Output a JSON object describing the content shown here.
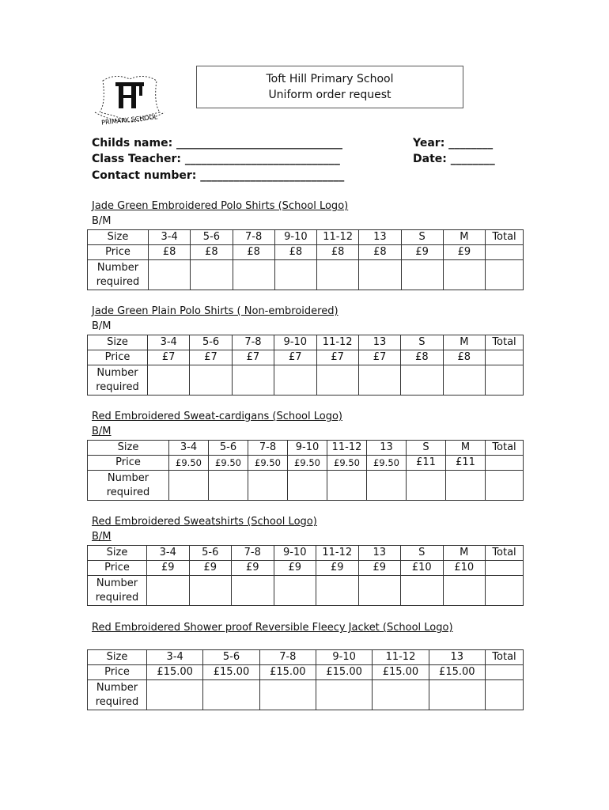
{
  "logo": {
    "text": "TH",
    "caption": "PRIMARY SCHOOL"
  },
  "header": {
    "line1": "Toft Hill Primary School",
    "line2": "Uniform order request"
  },
  "fields": {
    "childs_name": "Childs name: ______________________________",
    "year": "Year: ________",
    "class_teacher": "Class Teacher: ____________________________",
    "date": "Date: ________",
    "contact": "Contact number: __________________________"
  },
  "sections": [
    {
      "title": "Jade Green Embroidered Polo Shirts (School Logo)",
      "note": "B/M",
      "row_labels": [
        "Size",
        "Price",
        "Number required"
      ],
      "sizes": [
        "3-4",
        "5-6",
        "7-8",
        "9-10",
        "11-12",
        "13",
        "S",
        "M"
      ],
      "prices": [
        "£8",
        "£8",
        "£8",
        "£8",
        "£8",
        "£8",
        "£9",
        "£9"
      ],
      "total_label": "Total"
    },
    {
      "title": "Jade Green Plain Polo Shirts ( Non-embroidered)",
      "note": "B/M",
      "row_labels": [
        "Size",
        "Price",
        "Number required"
      ],
      "sizes": [
        "3-4",
        "5-6",
        "7-8",
        "9-10",
        "11-12",
        "13",
        "S",
        "M"
      ],
      "prices": [
        "£7",
        "£7",
        "£7",
        "£7",
        "£7",
        "£7",
        "£8",
        "£8"
      ],
      "total_label": "Total"
    },
    {
      "title": "Red Embroidered Sweat-cardigans (School Logo)",
      "note": "B/M",
      "row_labels": [
        "Size",
        "Price",
        "Number required"
      ],
      "sizes": [
        "3-4",
        "5-6",
        "7-8",
        "9-10",
        "11-12",
        "13",
        "S",
        "M"
      ],
      "prices": [
        "£9.50",
        "£9.50",
        "£9.50",
        "£9.50",
        "£9.50",
        "£9.50",
        "£11",
        "£11"
      ],
      "total_label": "Total"
    },
    {
      "title": "Red Embroidered Sweatshirts (School Logo)",
      "note": "B/M",
      "row_labels": [
        "Size",
        "Price",
        "Number required"
      ],
      "sizes": [
        "3-4",
        "5-6",
        "7-8",
        "9-10",
        "11-12",
        "13",
        "S",
        "M"
      ],
      "prices": [
        "£9",
        "£9",
        "£9",
        "£9",
        "£9",
        "£9",
        "£10",
        "£10"
      ],
      "total_label": "Total"
    },
    {
      "title": "Red Embroidered Shower proof Reversible Fleecy Jacket (School Logo)",
      "note": "",
      "row_labels": [
        "Size",
        "Price",
        "Number required"
      ],
      "sizes": [
        "3-4",
        "5-6",
        "7-8",
        "9-10",
        "11-12",
        "13"
      ],
      "prices": [
        "£15.00",
        "£15.00",
        "£15.00",
        "£15.00",
        "£15.00",
        "£15.00"
      ],
      "total_label": "Total"
    }
  ]
}
